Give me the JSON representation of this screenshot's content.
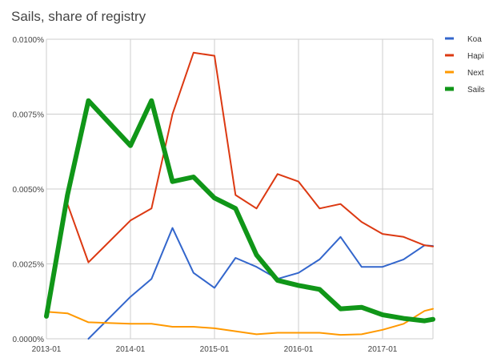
{
  "chart_data": {
    "type": "line",
    "title": "Sails, share of registry",
    "xlabel": "",
    "ylabel": "",
    "ylim": [
      0,
      0.01
    ],
    "xlim": [
      0,
      4.6
    ],
    "y_ticks": [
      {
        "value": 0.0,
        "label": "0.0000%"
      },
      {
        "value": 0.0025,
        "label": "0.0025%"
      },
      {
        "value": 0.005,
        "label": "0.0050%"
      },
      {
        "value": 0.0075,
        "label": "0.0075%"
      },
      {
        "value": 0.01,
        "label": "0.0100%"
      }
    ],
    "x_ticks": [
      {
        "value": 0,
        "label": "2013-01"
      },
      {
        "value": 1,
        "label": "2014-01"
      },
      {
        "value": 2,
        "label": "2015-01"
      },
      {
        "value": 3,
        "label": "2016-01"
      },
      {
        "value": 4,
        "label": "2017-01"
      }
    ],
    "legend_position": "right",
    "x": [
      0,
      0.25,
      0.5,
      1.0,
      1.25,
      1.5,
      1.75,
      2.0,
      2.25,
      2.5,
      2.75,
      3.0,
      3.25,
      3.5,
      3.75,
      4.0,
      4.25,
      4.5,
      4.6
    ],
    "series": [
      {
        "name": "Koa",
        "color": "#3366cc",
        "width": 2,
        "values": [
          null,
          null,
          0.0,
          0.0014,
          0.002,
          0.0037,
          0.0022,
          0.0017,
          0.0027,
          0.0024,
          0.002,
          0.0022,
          0.00265,
          0.0034,
          0.0024,
          0.0024,
          0.00265,
          0.00312,
          0.0031
        ]
      },
      {
        "name": "Hapi",
        "color": "#dc3912",
        "width": 2,
        "values": [
          0.0009,
          0.0045,
          0.00255,
          0.00395,
          0.00435,
          0.0075,
          0.00955,
          0.00945,
          0.0048,
          0.00435,
          0.0055,
          0.00525,
          0.00435,
          0.0045,
          0.0039,
          0.0035,
          0.0034,
          0.00312,
          0.00308
        ]
      },
      {
        "name": "Next",
        "color": "#ff9900",
        "width": 2,
        "values": [
          0.0009,
          0.00085,
          0.00055,
          0.0005,
          0.0005,
          0.0004,
          0.0004,
          0.00035,
          0.00025,
          0.00015,
          0.0002,
          0.0002,
          0.0002,
          0.00013,
          0.00015,
          0.0003,
          0.0005,
          0.00093,
          0.001
        ]
      },
      {
        "name": "Sails",
        "color": "#109618",
        "width": 6,
        "values": [
          0.00075,
          0.0048,
          0.00795,
          0.00645,
          0.00795,
          0.00525,
          0.0054,
          0.0047,
          0.00435,
          0.0028,
          0.00195,
          0.00178,
          0.00165,
          0.001,
          0.00105,
          0.0008,
          0.00068,
          0.0006,
          0.00065
        ]
      }
    ]
  }
}
